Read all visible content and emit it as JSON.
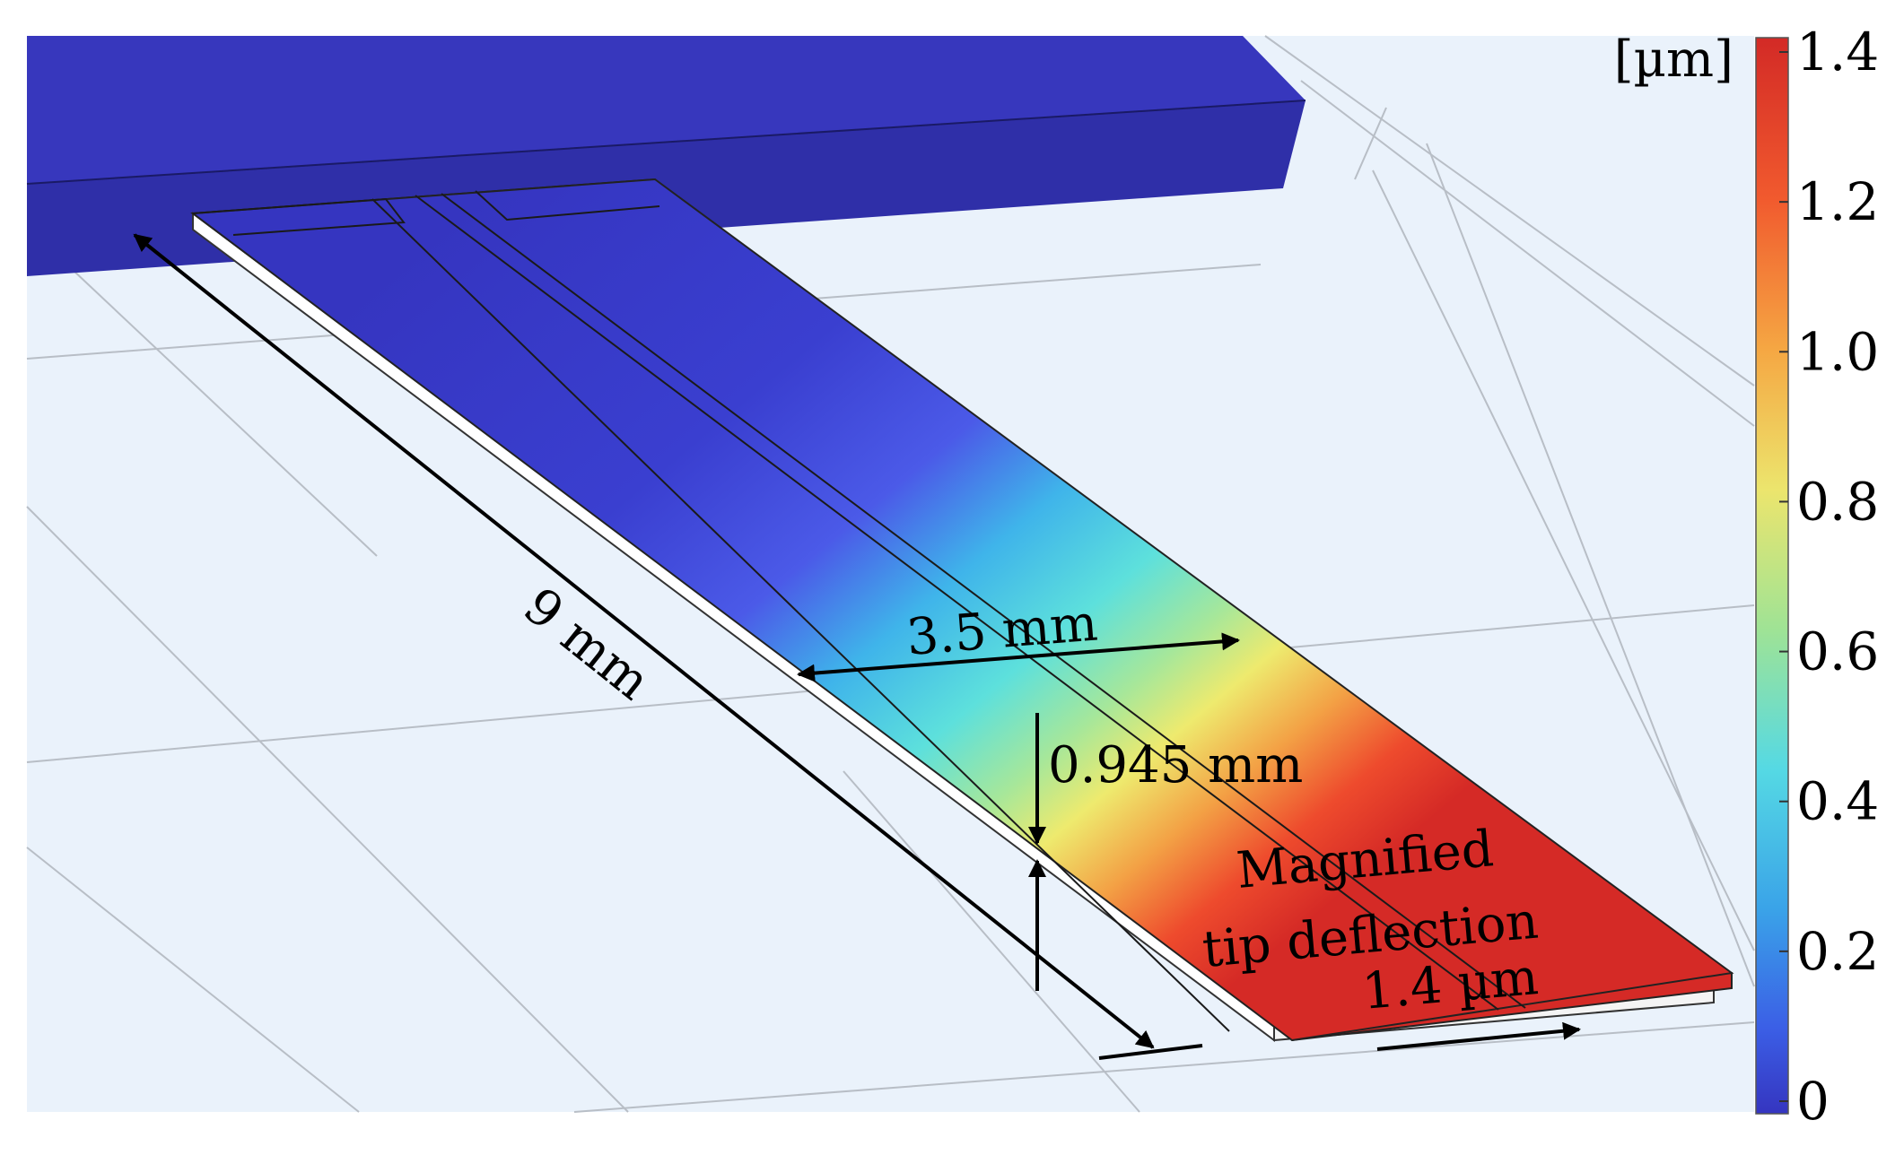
{
  "figure": {
    "annotations": {
      "length_label": "9 mm",
      "width_label": "3.5 mm",
      "thickness_label": "0.945 mm",
      "deflection_line1": "Magnified",
      "deflection_line2": "tip deflection",
      "deflection_value": "1.4 µm"
    }
  },
  "colorbar": {
    "unit": "[µm]",
    "ticks": [
      "1.4",
      "1.2",
      "1.0",
      "0.8",
      "0.6",
      "0.4",
      "0.2",
      "0"
    ],
    "min": 0,
    "max": 1.4,
    "colors": [
      "#d32a26",
      "#f15a2e",
      "#f5a743",
      "#ece56d",
      "#9fe395",
      "#55d9e4",
      "#3aa3e8",
      "#3b5fe6",
      "#3535c0"
    ]
  }
}
